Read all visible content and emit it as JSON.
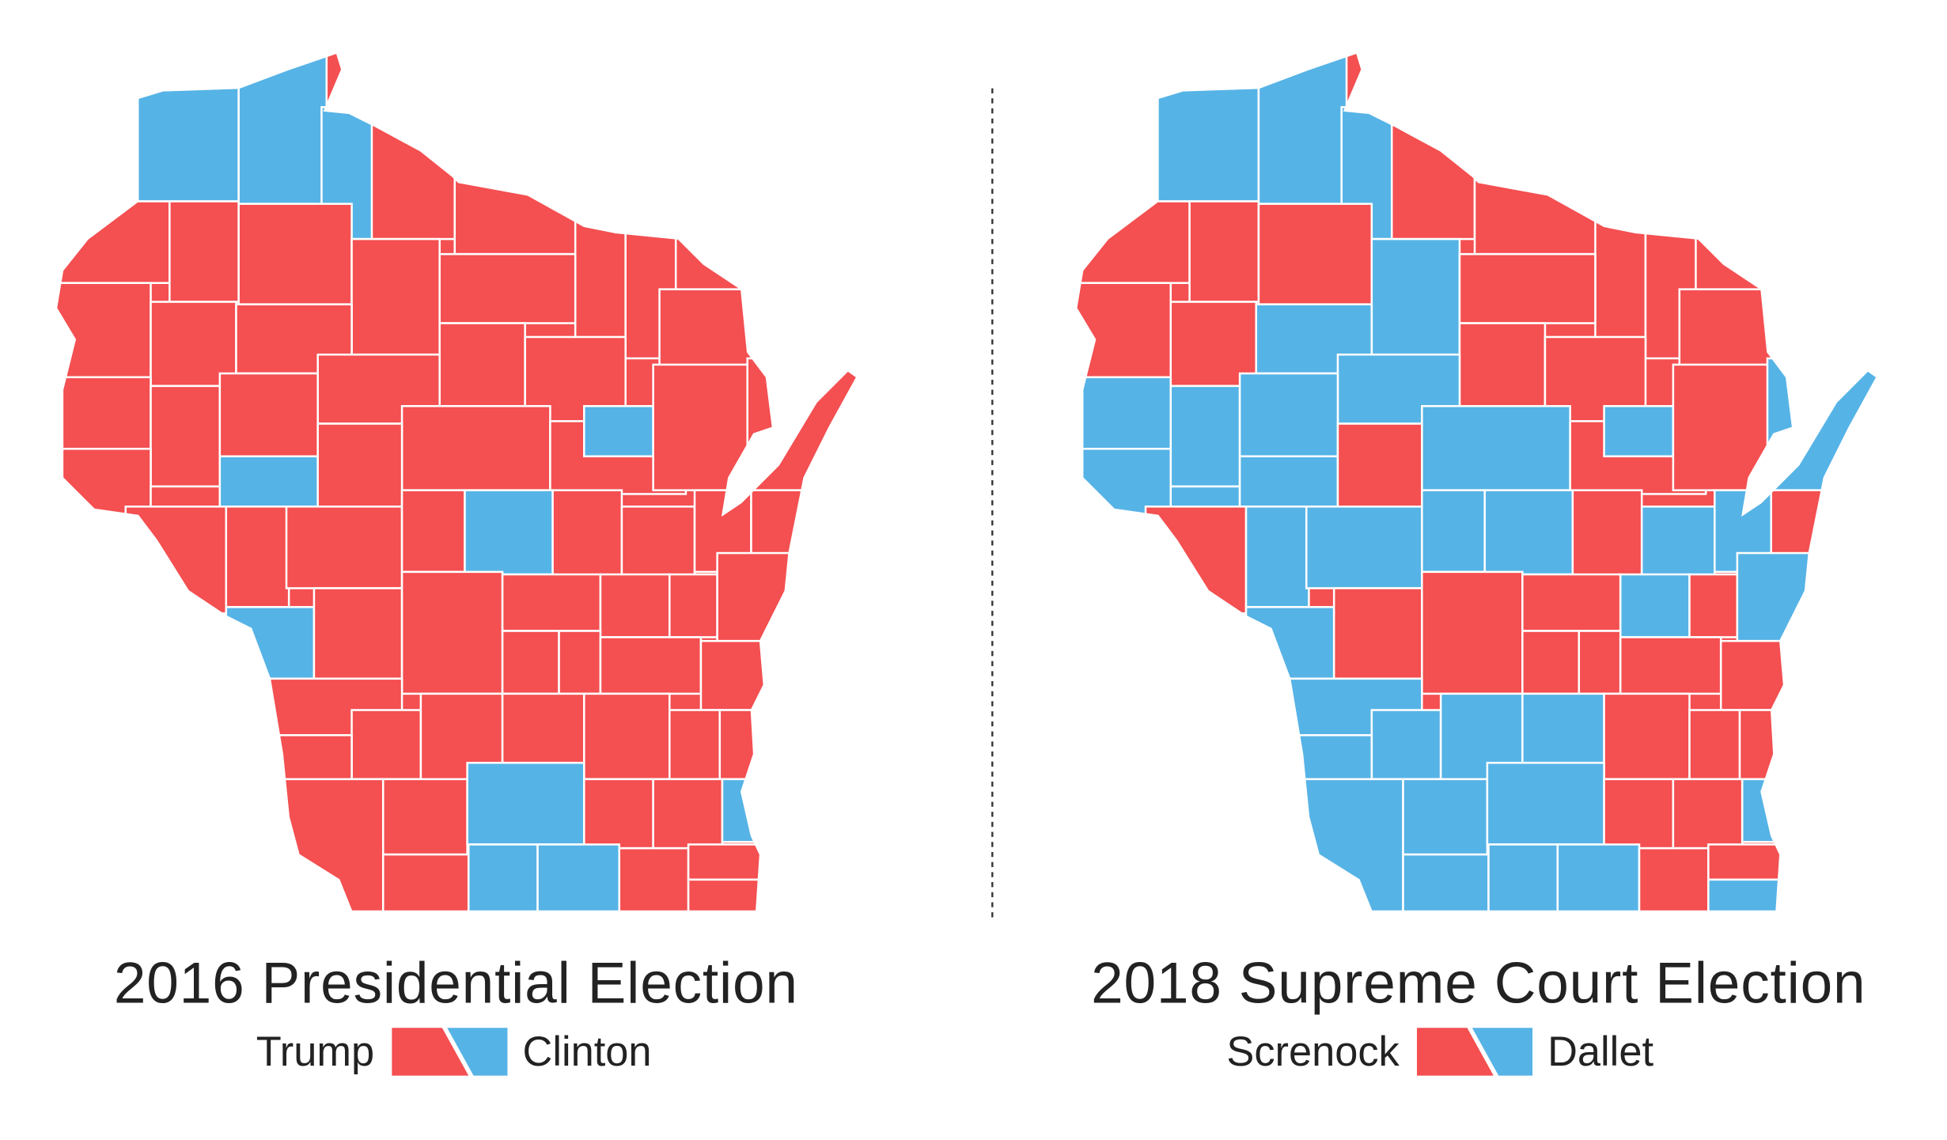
{
  "colors": {
    "republican": "#F44F51",
    "democrat": "#56B3E6",
    "divider": "#333333"
  },
  "maps": [
    {
      "title": "2016 Presidential Election",
      "legend": {
        "left_label": "Trump",
        "right_label": "Clinton"
      },
      "county_winners": [
        "D",
        "D",
        "D",
        "R",
        "R",
        "R",
        "R",
        "R",
        "R",
        "R",
        "R",
        "R",
        "R",
        "R",
        "R",
        "R",
        "R",
        "R",
        "R",
        "R",
        "R",
        "R",
        "R",
        "R",
        "D",
        "R",
        "R",
        "R",
        "D",
        "R",
        "R",
        "R",
        "R",
        "R",
        "D",
        "R",
        "R",
        "R",
        "R",
        "R",
        "D",
        "R",
        "R",
        "R",
        "R",
        "R",
        "R",
        "R",
        "R",
        "R",
        "R",
        "R",
        "R",
        "R",
        "R",
        "R",
        "R",
        "R",
        "R",
        "R",
        "R",
        "D",
        "R",
        "R",
        "D",
        "R",
        "D",
        "D",
        "R",
        "R",
        "R"
      ]
    },
    {
      "title": "2018 Supreme Court Election",
      "legend": {
        "left_label": "Screnock",
        "right_label": "Dallet"
      },
      "county_winners": [
        "D",
        "D",
        "D",
        "R",
        "R",
        "R",
        "R",
        "R",
        "R",
        "R",
        "R",
        "D",
        "R",
        "R",
        "R",
        "D",
        "R",
        "R",
        "D",
        "D",
        "D",
        "D",
        "D",
        "R",
        "D",
        "R",
        "D",
        "D",
        "D",
        "R",
        "R",
        "D",
        "D",
        "D",
        "D",
        "R",
        "D",
        "D",
        "D",
        "R",
        "D",
        "R",
        "R",
        "R",
        "D",
        "R",
        "D",
        "R",
        "R",
        "R",
        "R",
        "D",
        "D",
        "D",
        "D",
        "R",
        "R",
        "R",
        "D",
        "D",
        "D",
        "D",
        "R",
        "R",
        "D",
        "D",
        "D",
        "D",
        "R",
        "R",
        "D"
      ]
    }
  ]
}
